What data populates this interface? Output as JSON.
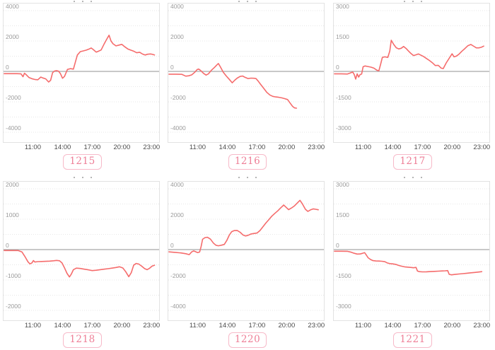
{
  "page": {
    "background": "#ffffff"
  },
  "style": {
    "line_color": "#f56c6c",
    "zero_line_color": "#a8a8a8",
    "plot_border_color": "#e2e2e2",
    "grid_color": "#e7e7e7",
    "y_tick_color": "#9b9b9b",
    "x_tick_color": "#4a4a4a",
    "badge_text_color": "#ee7f97",
    "badge_border_color": "#f7bac9",
    "badge_bg_color": "#ffffff"
  },
  "chart_data": [
    {
      "type": "line",
      "label": "1215",
      "x_range": [
        8,
        23.8
      ],
      "x_ticks": [
        "11:00",
        "14:00",
        "17:00",
        "20:00",
        "23:00"
      ],
      "y_max": 4000,
      "y_ticks": [
        4000,
        2000,
        0,
        -2000,
        -4000
      ],
      "grid_step": 1000,
      "points": [
        [
          8.1,
          -150
        ],
        [
          8.7,
          -150
        ],
        [
          9.4,
          -150
        ],
        [
          9.8,
          -160
        ],
        [
          10.0,
          -350
        ],
        [
          10.15,
          -120
        ],
        [
          10.3,
          -200
        ],
        [
          10.6,
          -400
        ],
        [
          10.9,
          -480
        ],
        [
          11.2,
          -530
        ],
        [
          11.5,
          -550
        ],
        [
          11.8,
          -370
        ],
        [
          12.0,
          -430
        ],
        [
          12.3,
          -490
        ],
        [
          12.6,
          -700
        ],
        [
          12.8,
          -580
        ],
        [
          13.0,
          -80
        ],
        [
          13.2,
          30
        ],
        [
          13.4,
          50
        ],
        [
          13.6,
          20
        ],
        [
          13.8,
          -160
        ],
        [
          14.0,
          -450
        ],
        [
          14.2,
          -330
        ],
        [
          14.5,
          130
        ],
        [
          14.8,
          180
        ],
        [
          15.1,
          150
        ],
        [
          15.3,
          620
        ],
        [
          15.5,
          1080
        ],
        [
          15.8,
          1300
        ],
        [
          16.1,
          1350
        ],
        [
          16.4,
          1400
        ],
        [
          16.7,
          1480
        ],
        [
          16.9,
          1540
        ],
        [
          17.1,
          1440
        ],
        [
          17.4,
          1270
        ],
        [
          17.6,
          1320
        ],
        [
          17.9,
          1410
        ],
        [
          18.2,
          1800
        ],
        [
          18.45,
          2100
        ],
        [
          18.7,
          2380
        ],
        [
          18.9,
          2000
        ],
        [
          19.1,
          1820
        ],
        [
          19.4,
          1680
        ],
        [
          19.7,
          1730
        ],
        [
          20.0,
          1780
        ],
        [
          20.3,
          1620
        ],
        [
          20.6,
          1480
        ],
        [
          20.9,
          1400
        ],
        [
          21.2,
          1330
        ],
        [
          21.5,
          1230
        ],
        [
          21.8,
          1260
        ],
        [
          22.1,
          1140
        ],
        [
          22.35,
          1080
        ],
        [
          22.6,
          1130
        ],
        [
          22.9,
          1150
        ],
        [
          23.1,
          1120
        ],
        [
          23.3,
          1080
        ]
      ]
    },
    {
      "type": "line",
      "label": "1216",
      "x_range": [
        8,
        23.8
      ],
      "x_ticks": [
        "11:00",
        "14:00",
        "17:00",
        "20:00",
        "23:00"
      ],
      "y_max": 4000,
      "y_ticks": [
        4000,
        2000,
        0,
        -2000,
        -4000
      ],
      "grid_step": 1000,
      "points": [
        [
          8.1,
          -180
        ],
        [
          8.8,
          -180
        ],
        [
          9.4,
          -190
        ],
        [
          9.8,
          -310
        ],
        [
          10.1,
          -290
        ],
        [
          10.4,
          -230
        ],
        [
          10.7,
          -60
        ],
        [
          10.95,
          120
        ],
        [
          11.1,
          160
        ],
        [
          11.3,
          60
        ],
        [
          11.6,
          -130
        ],
        [
          11.85,
          -240
        ],
        [
          12.1,
          -160
        ],
        [
          12.4,
          80
        ],
        [
          12.7,
          260
        ],
        [
          12.95,
          430
        ],
        [
          13.1,
          520
        ],
        [
          13.3,
          300
        ],
        [
          13.6,
          -60
        ],
        [
          13.9,
          -300
        ],
        [
          14.2,
          -520
        ],
        [
          14.5,
          -750
        ],
        [
          14.75,
          -580
        ],
        [
          15.0,
          -440
        ],
        [
          15.3,
          -330
        ],
        [
          15.55,
          -300
        ],
        [
          15.8,
          -390
        ],
        [
          16.1,
          -470
        ],
        [
          16.4,
          -440
        ],
        [
          16.7,
          -450
        ],
        [
          16.9,
          -470
        ],
        [
          17.1,
          -620
        ],
        [
          17.4,
          -880
        ],
        [
          17.7,
          -1130
        ],
        [
          18.0,
          -1380
        ],
        [
          18.3,
          -1550
        ],
        [
          18.6,
          -1640
        ],
        [
          18.9,
          -1680
        ],
        [
          19.2,
          -1700
        ],
        [
          19.5,
          -1740
        ],
        [
          19.8,
          -1790
        ],
        [
          20.1,
          -1850
        ],
        [
          20.35,
          -2080
        ],
        [
          20.6,
          -2300
        ],
        [
          20.8,
          -2400
        ],
        [
          21.0,
          -2420
        ]
      ]
    },
    {
      "type": "line",
      "label": "1217",
      "x_range": [
        8,
        23.8
      ],
      "x_ticks": [
        "11:00",
        "14:00",
        "17:00",
        "20:00",
        "23:00"
      ],
      "y_max": 3000,
      "y_ticks": [
        3000,
        1500,
        0,
        -1500,
        -3000
      ],
      "grid_step": 750,
      "points": [
        [
          8.1,
          -120
        ],
        [
          8.8,
          -120
        ],
        [
          9.4,
          -130
        ],
        [
          9.7,
          -80
        ],
        [
          9.95,
          -30
        ],
        [
          10.1,
          -150
        ],
        [
          10.25,
          -380
        ],
        [
          10.4,
          -120
        ],
        [
          10.55,
          -280
        ],
        [
          10.7,
          -150
        ],
        [
          10.85,
          -130
        ],
        [
          11.0,
          230
        ],
        [
          11.2,
          270
        ],
        [
          11.5,
          240
        ],
        [
          11.8,
          210
        ],
        [
          12.1,
          160
        ],
        [
          12.4,
          60
        ],
        [
          12.6,
          30
        ],
        [
          12.8,
          400
        ],
        [
          12.95,
          690
        ],
        [
          13.2,
          720
        ],
        [
          13.5,
          690
        ],
        [
          13.7,
          1000
        ],
        [
          13.85,
          1540
        ],
        [
          14.1,
          1330
        ],
        [
          14.35,
          1170
        ],
        [
          14.6,
          1110
        ],
        [
          14.85,
          1140
        ],
        [
          15.1,
          1230
        ],
        [
          15.35,
          1130
        ],
        [
          15.6,
          1000
        ],
        [
          15.85,
          880
        ],
        [
          16.1,
          780
        ],
        [
          16.35,
          820
        ],
        [
          16.6,
          860
        ],
        [
          16.85,
          800
        ],
        [
          17.1,
          740
        ],
        [
          17.4,
          640
        ],
        [
          17.7,
          540
        ],
        [
          18.0,
          430
        ],
        [
          18.3,
          290
        ],
        [
          18.6,
          300
        ],
        [
          18.9,
          160
        ],
        [
          19.1,
          140
        ],
        [
          19.4,
          420
        ],
        [
          19.7,
          650
        ],
        [
          20.0,
          870
        ],
        [
          20.2,
          720
        ],
        [
          20.45,
          760
        ],
        [
          20.7,
          850
        ],
        [
          21.0,
          1000
        ],
        [
          21.3,
          1130
        ],
        [
          21.6,
          1270
        ],
        [
          21.9,
          1330
        ],
        [
          22.2,
          1240
        ],
        [
          22.45,
          1160
        ],
        [
          22.7,
          1160
        ],
        [
          22.95,
          1190
        ],
        [
          23.2,
          1250
        ]
      ]
    },
    {
      "type": "line",
      "label": "1218",
      "x_range": [
        8,
        23.8
      ],
      "x_ticks": [
        "11:00",
        "14:00",
        "17:00",
        "20:00",
        "23:00"
      ],
      "y_max": 2000,
      "y_ticks": [
        2000,
        1000,
        0,
        -1000,
        -2000
      ],
      "grid_step": 500,
      "points": [
        [
          8.1,
          -30
        ],
        [
          8.8,
          -30
        ],
        [
          9.5,
          -30
        ],
        [
          9.9,
          -80
        ],
        [
          10.2,
          -230
        ],
        [
          10.5,
          -400
        ],
        [
          10.7,
          -470
        ],
        [
          10.9,
          -440
        ],
        [
          11.05,
          -360
        ],
        [
          11.2,
          -410
        ],
        [
          11.5,
          -395
        ],
        [
          11.9,
          -390
        ],
        [
          12.3,
          -385
        ],
        [
          12.7,
          -378
        ],
        [
          13.1,
          -368
        ],
        [
          13.4,
          -355
        ],
        [
          13.7,
          -368
        ],
        [
          13.95,
          -440
        ],
        [
          14.2,
          -600
        ],
        [
          14.45,
          -780
        ],
        [
          14.7,
          -900
        ],
        [
          14.9,
          -800
        ],
        [
          15.1,
          -660
        ],
        [
          15.4,
          -610
        ],
        [
          15.8,
          -620
        ],
        [
          16.2,
          -645
        ],
        [
          16.6,
          -665
        ],
        [
          17.0,
          -690
        ],
        [
          17.4,
          -678
        ],
        [
          17.8,
          -660
        ],
        [
          18.2,
          -645
        ],
        [
          18.6,
          -628
        ],
        [
          19.0,
          -610
        ],
        [
          19.4,
          -588
        ],
        [
          19.75,
          -565
        ],
        [
          20.1,
          -605
        ],
        [
          20.4,
          -730
        ],
        [
          20.7,
          -890
        ],
        [
          20.95,
          -760
        ],
        [
          21.2,
          -510
        ],
        [
          21.45,
          -455
        ],
        [
          21.7,
          -475
        ],
        [
          22.0,
          -545
        ],
        [
          22.3,
          -625
        ],
        [
          22.55,
          -660
        ],
        [
          22.8,
          -615
        ],
        [
          23.05,
          -545
        ],
        [
          23.3,
          -515
        ]
      ]
    },
    {
      "type": "line",
      "label": "1220",
      "x_range": [
        8,
        23.8
      ],
      "x_ticks": [
        "11:00",
        "14:00",
        "17:00",
        "20:00",
        "23:00"
      ],
      "y_max": 4000,
      "y_ticks": [
        4000,
        2000,
        0,
        -2000,
        -4000
      ],
      "grid_step": 1000,
      "points": [
        [
          8.1,
          -150
        ],
        [
          8.7,
          -180
        ],
        [
          9.3,
          -220
        ],
        [
          9.8,
          -270
        ],
        [
          10.15,
          -330
        ],
        [
          10.4,
          -150
        ],
        [
          10.6,
          -90
        ],
        [
          10.8,
          -140
        ],
        [
          11.0,
          -200
        ],
        [
          11.2,
          -160
        ],
        [
          11.35,
          200
        ],
        [
          11.5,
          680
        ],
        [
          11.75,
          790
        ],
        [
          12.0,
          810
        ],
        [
          12.3,
          690
        ],
        [
          12.6,
          430
        ],
        [
          12.85,
          290
        ],
        [
          13.1,
          250
        ],
        [
          13.4,
          290
        ],
        [
          13.7,
          340
        ],
        [
          13.95,
          600
        ],
        [
          14.2,
          950
        ],
        [
          14.45,
          1180
        ],
        [
          14.7,
          1250
        ],
        [
          15.0,
          1260
        ],
        [
          15.3,
          1140
        ],
        [
          15.6,
          960
        ],
        [
          15.85,
          900
        ],
        [
          16.1,
          940
        ],
        [
          16.4,
          1030
        ],
        [
          16.7,
          1060
        ],
        [
          17.0,
          1090
        ],
        [
          17.3,
          1250
        ],
        [
          17.6,
          1500
        ],
        [
          17.9,
          1750
        ],
        [
          18.2,
          1970
        ],
        [
          18.5,
          2200
        ],
        [
          18.8,
          2380
        ],
        [
          19.1,
          2550
        ],
        [
          19.4,
          2750
        ],
        [
          19.7,
          2930
        ],
        [
          19.95,
          2780
        ],
        [
          20.2,
          2630
        ],
        [
          20.5,
          2740
        ],
        [
          20.8,
          2880
        ],
        [
          21.1,
          3080
        ],
        [
          21.35,
          3240
        ],
        [
          21.6,
          3000
        ],
        [
          21.9,
          2650
        ],
        [
          22.15,
          2510
        ],
        [
          22.4,
          2610
        ],
        [
          22.7,
          2680
        ],
        [
          22.95,
          2650
        ],
        [
          23.2,
          2620
        ]
      ]
    },
    {
      "type": "line",
      "label": "1221",
      "x_range": [
        8,
        23.8
      ],
      "x_ticks": [
        "11:00",
        "14:00",
        "17:00",
        "20:00",
        "23:00"
      ],
      "y_max": 3000,
      "y_ticks": [
        3000,
        1500,
        0,
        -1500,
        -3000
      ],
      "grid_step": 750,
      "points": [
        [
          8.1,
          -80
        ],
        [
          8.8,
          -80
        ],
        [
          9.4,
          -85
        ],
        [
          9.8,
          -130
        ],
        [
          10.1,
          -180
        ],
        [
          10.4,
          -220
        ],
        [
          10.7,
          -215
        ],
        [
          10.95,
          -180
        ],
        [
          11.15,
          -150
        ],
        [
          11.3,
          -250
        ],
        [
          11.5,
          -400
        ],
        [
          11.75,
          -490
        ],
        [
          12.0,
          -545
        ],
        [
          12.3,
          -560
        ],
        [
          12.6,
          -565
        ],
        [
          12.9,
          -575
        ],
        [
          13.2,
          -595
        ],
        [
          13.45,
          -660
        ],
        [
          13.7,
          -690
        ],
        [
          14.0,
          -705
        ],
        [
          14.3,
          -730
        ],
        [
          14.6,
          -780
        ],
        [
          14.9,
          -820
        ],
        [
          15.2,
          -850
        ],
        [
          15.5,
          -865
        ],
        [
          15.8,
          -880
        ],
        [
          16.1,
          -895
        ],
        [
          16.35,
          -880
        ],
        [
          16.5,
          -1060
        ],
        [
          16.7,
          -1090
        ],
        [
          17.0,
          -1100
        ],
        [
          17.4,
          -1095
        ],
        [
          17.8,
          -1085
        ],
        [
          18.2,
          -1075
        ],
        [
          18.6,
          -1065
        ],
        [
          19.0,
          -1055
        ],
        [
          19.3,
          -1045
        ],
        [
          19.55,
          -1035
        ],
        [
          19.7,
          -1220
        ],
        [
          19.95,
          -1245
        ],
        [
          20.3,
          -1225
        ],
        [
          20.7,
          -1205
        ],
        [
          21.1,
          -1185
        ],
        [
          21.5,
          -1165
        ],
        [
          21.9,
          -1145
        ],
        [
          22.3,
          -1125
        ],
        [
          22.7,
          -1105
        ],
        [
          23.0,
          -1090
        ]
      ]
    }
  ]
}
